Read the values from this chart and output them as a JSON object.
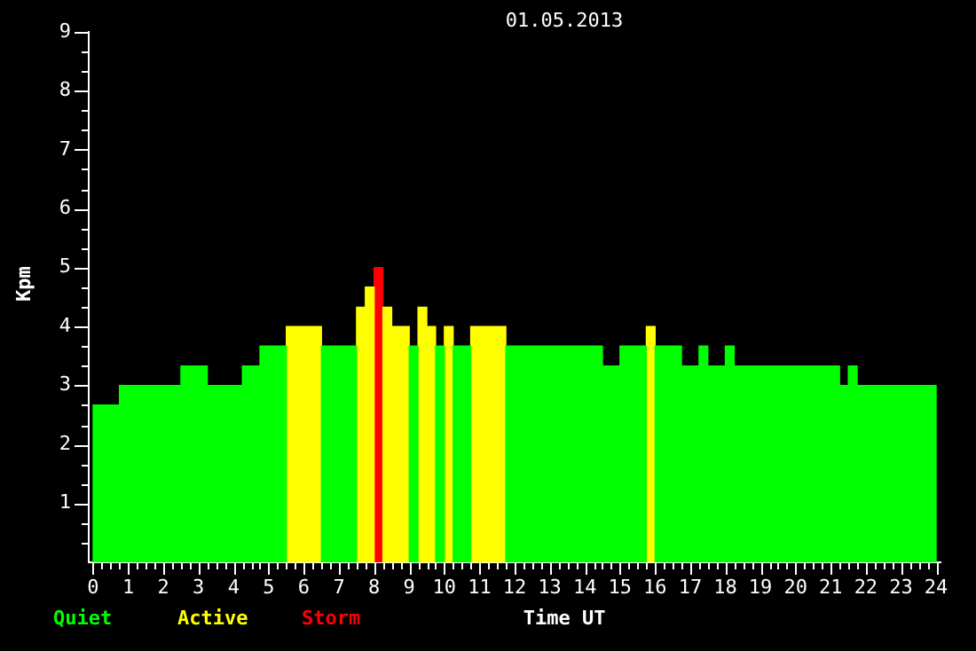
{
  "chart_data": {
    "type": "histogram",
    "title": "01.05.2013",
    "xlabel": "Time UT",
    "ylabel": "Kpm",
    "xlim": [
      0,
      24
    ],
    "ylim": [
      0,
      9
    ],
    "xticks": [
      0,
      {
        "value": 0.25,
        "label": null
      },
      {
        "value": 0.5,
        "label": null
      },
      {
        "value": 0.75,
        "label": null
      },
      1,
      {
        "value": 1.25,
        "label": null
      },
      {
        "value": 1.5,
        "label": null
      },
      {
        "value": 1.75,
        "label": null
      },
      2,
      {
        "value": 2.25,
        "label": null
      },
      {
        "value": 2.5,
        "label": null
      },
      {
        "value": 2.75,
        "label": null
      },
      3,
      {
        "value": 3.25,
        "label": null
      },
      {
        "value": 3.5,
        "label": null
      },
      {
        "value": 3.75,
        "label": null
      },
      4,
      {
        "value": 4.25,
        "label": null
      },
      {
        "value": 4.5,
        "label": null
      },
      {
        "value": 4.75,
        "label": null
      },
      5,
      {
        "value": 5.25,
        "label": null
      },
      {
        "value": 5.5,
        "label": null
      },
      {
        "value": 5.75,
        "label": null
      },
      6,
      {
        "value": 6.25,
        "label": null
      },
      {
        "value": 6.5,
        "label": null
      },
      {
        "value": 6.75,
        "label": null
      },
      7,
      {
        "value": 7.25,
        "label": null
      },
      {
        "value": 7.5,
        "label": null
      },
      {
        "value": 7.75,
        "label": null
      },
      8,
      {
        "value": 8.25,
        "label": null
      },
      {
        "value": 8.5,
        "label": null
      },
      {
        "value": 8.75,
        "label": null
      },
      9,
      {
        "value": 9.25,
        "label": null
      },
      {
        "value": 9.5,
        "label": null
      },
      {
        "value": 9.75,
        "label": null
      },
      10,
      {
        "value": 10.25,
        "label": null
      },
      {
        "value": 10.5,
        "label": null
      },
      {
        "value": 10.75,
        "label": null
      },
      11,
      {
        "value": 11.25,
        "label": null
      },
      {
        "value": 11.5,
        "label": null
      },
      {
        "value": 11.75,
        "label": null
      },
      12,
      {
        "value": 12.25,
        "label": null
      },
      {
        "value": 12.5,
        "label": null
      },
      {
        "value": 12.75,
        "label": null
      },
      13,
      {
        "value": 13.25,
        "label": null
      },
      {
        "value": 13.5,
        "label": null
      },
      {
        "value": 13.75,
        "label": null
      },
      14,
      {
        "value": 14.25,
        "label": null
      },
      {
        "value": 14.5,
        "label": null
      },
      {
        "value": 14.75,
        "label": null
      },
      15,
      {
        "value": 15.25,
        "label": null
      },
      {
        "value": 15.5,
        "label": null
      },
      {
        "value": 15.75,
        "label": null
      },
      16,
      {
        "value": 16.25,
        "label": null
      },
      {
        "value": 16.5,
        "label": null
      },
      {
        "value": 16.75,
        "label": null
      },
      17,
      {
        "value": 17.25,
        "label": null
      },
      {
        "value": 17.5,
        "label": null
      },
      {
        "value": 17.75,
        "label": null
      },
      18,
      {
        "value": 18.25,
        "label": null
      },
      {
        "value": 18.5,
        "label": null
      },
      {
        "value": 18.75,
        "label": null
      },
      19,
      {
        "value": 19.25,
        "label": null
      },
      {
        "value": 19.5,
        "label": null
      },
      {
        "value": 19.75,
        "label": null
      },
      20,
      {
        "value": 20.25,
        "label": null
      },
      {
        "value": 20.5,
        "label": null
      },
      {
        "value": 20.75,
        "label": null
      },
      21,
      {
        "value": 21.25,
        "label": null
      },
      {
        "value": 21.5,
        "label": null
      },
      {
        "value": 21.75,
        "label": null
      },
      22,
      {
        "value": 22.25,
        "label": null
      },
      {
        "value": 22.5,
        "label": null
      },
      {
        "value": 22.75,
        "label": null
      },
      23,
      {
        "value": 23.25,
        "label": null
      },
      {
        "value": 23.5,
        "label": null
      },
      {
        "value": 23.75,
        "label": null
      },
      24
    ],
    "yticks": [
      {
        "value": 0.33,
        "label": null
      },
      {
        "value": 0.67,
        "label": null
      },
      1,
      {
        "value": 1.33,
        "label": null
      },
      {
        "value": 1.67,
        "label": null
      },
      2,
      {
        "value": 2.33,
        "label": null
      },
      {
        "value": 2.67,
        "label": null
      },
      3,
      {
        "value": 3.33,
        "label": null
      },
      {
        "value": 3.67,
        "label": null
      },
      4,
      {
        "value": 4.33,
        "label": null
      },
      {
        "value": 4.67,
        "label": null
      },
      5,
      {
        "value": 5.33,
        "label": null
      },
      {
        "value": 5.67,
        "label": null
      },
      6,
      {
        "value": 6.33,
        "label": null
      },
      {
        "value": 6.67,
        "label": null
      },
      7,
      {
        "value": 7.33,
        "label": null
      },
      {
        "value": 7.67,
        "label": null
      },
      8,
      {
        "value": 8.33,
        "label": null
      },
      {
        "value": 8.67,
        "label": null
      },
      9
    ],
    "bins": [
      0,
      0.75,
      2.5,
      3.25,
      4.25,
      4.75,
      5.5,
      6.5,
      7.5,
      7.75,
      8,
      8.25,
      8.5,
      9,
      9.25,
      9.5,
      9.75,
      10,
      10.25,
      10.75,
      11.75,
      14.5,
      15,
      15.75,
      16,
      16.75,
      17.25,
      17.5,
      18,
      18.25,
      21.25,
      21.5,
      21.75,
      24
    ],
    "series": [
      {
        "name": "Quiet",
        "color": "#00ff00",
        "values": [
          2.67,
          3,
          3.33,
          3,
          3.33,
          3.67,
          null,
          3.67,
          null,
          null,
          null,
          null,
          null,
          3.67,
          null,
          null,
          3.67,
          null,
          3.67,
          null,
          3.67,
          3.33,
          3.67,
          null,
          3.67,
          3.33,
          3.67,
          3.33,
          3.67,
          3.33,
          3,
          3.33,
          3
        ]
      },
      {
        "name": "Active",
        "color": "#ffff00",
        "values": [
          null,
          null,
          null,
          null,
          null,
          null,
          4,
          null,
          4.33,
          4.67,
          null,
          4.33,
          4,
          null,
          4.33,
          4,
          null,
          4,
          null,
          4,
          null,
          null,
          null,
          4,
          null,
          null,
          null,
          null,
          null,
          null,
          null,
          null,
          null
        ]
      },
      {
        "name": "Storm",
        "color": "#ff0000",
        "values": [
          null,
          null,
          null,
          null,
          null,
          null,
          null,
          null,
          null,
          null,
          5,
          null,
          null,
          null,
          null,
          null,
          null,
          null,
          null,
          null,
          null,
          null,
          null,
          null,
          null,
          null,
          null,
          null,
          null,
          null,
          null,
          null,
          null
        ]
      }
    ],
    "grid": false,
    "legend": "bottom left"
  }
}
